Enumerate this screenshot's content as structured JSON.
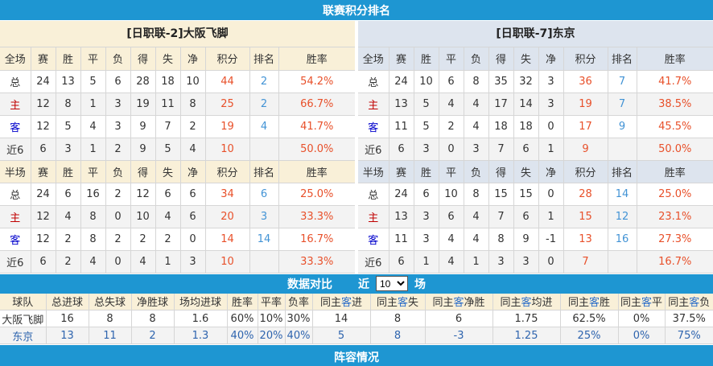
{
  "top_bar": {
    "title": "联赛积分排名"
  },
  "stat_columns": [
    "赛",
    "胜",
    "平",
    "负",
    "得",
    "失",
    "净",
    "积分",
    "排名",
    "胜率"
  ],
  "left_table": {
    "title": "[日职联-2]大阪飞脚",
    "sections": [
      {
        "label": "全场",
        "rows": [
          {
            "label": "总",
            "type": "total",
            "values": [
              24,
              13,
              5,
              6,
              28,
              18,
              10
            ],
            "points": "44",
            "rank": "2",
            "rate": "54.2%"
          },
          {
            "label": "主",
            "type": "home",
            "values": [
              12,
              8,
              1,
              3,
              19,
              11,
              8
            ],
            "points": "25",
            "rank": "2",
            "rate": "66.7%"
          },
          {
            "label": "客",
            "type": "away",
            "values": [
              12,
              5,
              4,
              3,
              9,
              7,
              2
            ],
            "points": "19",
            "rank": "4",
            "rate": "41.7%"
          },
          {
            "label": "近6",
            "type": "recent",
            "values": [
              6,
              3,
              1,
              2,
              9,
              5,
              4
            ],
            "points": "10",
            "rank": "",
            "rate": "50.0%"
          }
        ]
      },
      {
        "label": "半场",
        "rows": [
          {
            "label": "总",
            "type": "total",
            "values": [
              24,
              6,
              16,
              2,
              12,
              6,
              6
            ],
            "points": "34",
            "rank": "6",
            "rate": "25.0%"
          },
          {
            "label": "主",
            "type": "home",
            "values": [
              12,
              4,
              8,
              0,
              10,
              4,
              6
            ],
            "points": "20",
            "rank": "3",
            "rate": "33.3%"
          },
          {
            "label": "客",
            "type": "away",
            "values": [
              12,
              2,
              8,
              2,
              2,
              2,
              0
            ],
            "points": "14",
            "rank": "14",
            "rate": "16.7%"
          },
          {
            "label": "近6",
            "type": "recent",
            "values": [
              6,
              2,
              4,
              0,
              4,
              1,
              3
            ],
            "points": "10",
            "rank": "",
            "rate": "33.3%"
          }
        ]
      }
    ]
  },
  "right_table": {
    "title": "[日职联-7]东京",
    "sections": [
      {
        "label": "全场",
        "rows": [
          {
            "label": "总",
            "type": "total",
            "values": [
              24,
              10,
              6,
              8,
              35,
              32,
              3
            ],
            "points": "36",
            "rank": "7",
            "rate": "41.7%"
          },
          {
            "label": "主",
            "type": "home",
            "values": [
              13,
              5,
              4,
              4,
              17,
              14,
              3
            ],
            "points": "19",
            "rank": "7",
            "rate": "38.5%"
          },
          {
            "label": "客",
            "type": "away",
            "values": [
              11,
              5,
              2,
              4,
              18,
              18,
              0
            ],
            "points": "17",
            "rank": "9",
            "rate": "45.5%"
          },
          {
            "label": "近6",
            "type": "recent",
            "values": [
              6,
              3,
              0,
              3,
              7,
              6,
              1
            ],
            "points": "9",
            "rank": "",
            "rate": "50.0%"
          }
        ]
      },
      {
        "label": "半场",
        "rows": [
          {
            "label": "总",
            "type": "total",
            "values": [
              24,
              6,
              10,
              8,
              15,
              15,
              0
            ],
            "points": "28",
            "rank": "14",
            "rate": "25.0%"
          },
          {
            "label": "主",
            "type": "home",
            "values": [
              13,
              3,
              6,
              4,
              7,
              6,
              1
            ],
            "points": "15",
            "rank": "12",
            "rate": "23.1%"
          },
          {
            "label": "客",
            "type": "away",
            "values": [
              11,
              3,
              4,
              4,
              8,
              9,
              -1
            ],
            "points": "13",
            "rank": "16",
            "rate": "27.3%"
          },
          {
            "label": "近6",
            "type": "recent",
            "values": [
              6,
              1,
              4,
              1,
              3,
              3,
              0
            ],
            "points": "7",
            "rank": "",
            "rate": "16.7%"
          }
        ]
      }
    ]
  },
  "comparison": {
    "bar_title": "数据对比",
    "near_label": "近",
    "matches_label": "场",
    "select_value": "10",
    "select_options": [
      "10"
    ],
    "headers": [
      {
        "pre": "球队"
      },
      {
        "pre": "总进球"
      },
      {
        "pre": "总失球"
      },
      {
        "pre": "净胜球"
      },
      {
        "pre": "场均进球"
      },
      {
        "pre": "胜率"
      },
      {
        "pre": "平率"
      },
      {
        "pre": "负率"
      },
      {
        "pre": "同主",
        "hl": "客",
        "post": "进"
      },
      {
        "pre": "同主",
        "hl": "客",
        "post": "失"
      },
      {
        "pre": "同主",
        "hl": "客",
        "post": "净胜"
      },
      {
        "pre": "同主",
        "hl": "客",
        "post": "均进"
      },
      {
        "pre": "同主",
        "hl": "客",
        "post": "胜"
      },
      {
        "pre": "同主",
        "hl": "客",
        "post": "平"
      },
      {
        "pre": "同主",
        "hl": "客",
        "post": "负"
      }
    ],
    "rows": [
      {
        "team": "大阪飞脚",
        "style": "dark",
        "values": [
          "16",
          "8",
          "8",
          "1.6",
          "60%",
          "10%",
          "30%",
          "14",
          "8",
          "6",
          "1.75",
          "62.5%",
          "0%",
          "37.5%"
        ]
      },
      {
        "team": "东京",
        "style": "blue",
        "values": [
          "13",
          "11",
          "2",
          "1.3",
          "40%",
          "20%",
          "40%",
          "5",
          "8",
          "-3",
          "1.25",
          "25%",
          "0%",
          "75%"
        ]
      }
    ]
  },
  "bottom_bar": {
    "title": "阵容情况"
  },
  "colors": {
    "bar_blue": "#1E96D2",
    "cream_bg": "#F9F0D8",
    "blue_header_bg": "#DDE4EE",
    "accent_red": "#E8502A",
    "rank_blue": "#4293D5",
    "home_red": "#C00000",
    "away_blue": "#0000CC",
    "comparison_blue": "#2E64AE",
    "header_highlight_blue": "#2E6FC8",
    "text_dark": "#333333",
    "border_gray": "#D6D6D6",
    "alt_row_bg": "#F3F3F3"
  }
}
